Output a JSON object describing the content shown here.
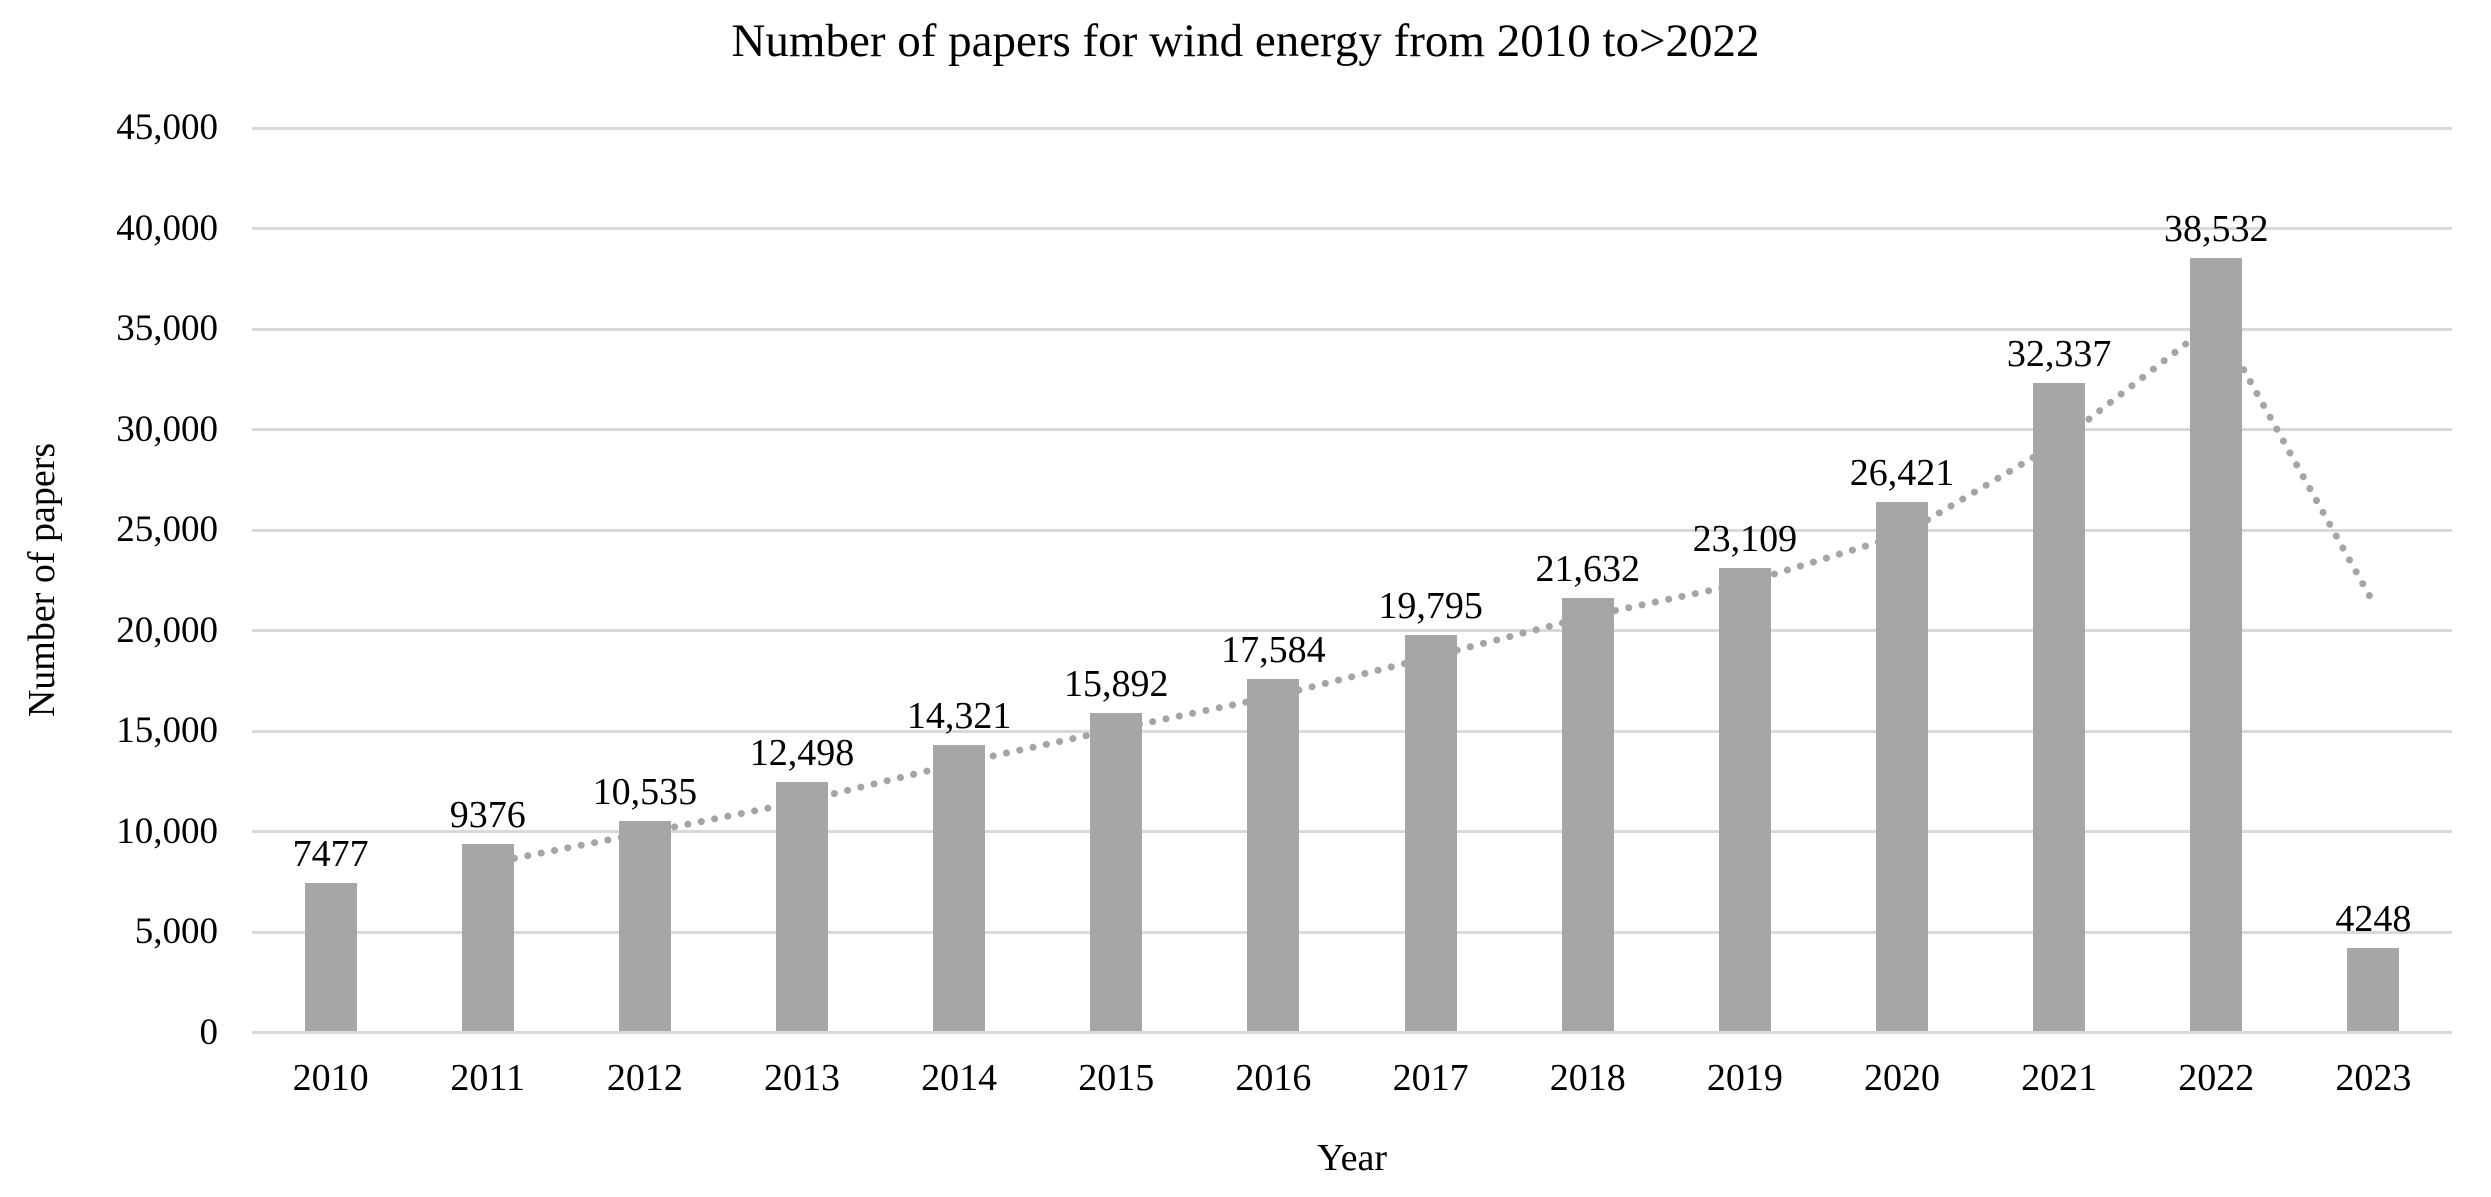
{
  "colors": {
    "bar": "#a6a6a6",
    "trendline": "#a5a5a5",
    "gridline": "#d9d9d9",
    "axis_line": "#d9d9d9",
    "text": "#000000",
    "background": "#ffffff"
  },
  "chart_data": {
    "type": "bar",
    "title": "Number of papers for wind energy from 2010 to>2022",
    "xlabel": "Year",
    "ylabel": "Number of papers",
    "categories": [
      "2010",
      "2011",
      "2012",
      "2013",
      "2014",
      "2015",
      "2016",
      "2017",
      "2018",
      "2019",
      "2020",
      "2021",
      "2022",
      "2023"
    ],
    "values": [
      7477,
      9376,
      10535,
      12498,
      14321,
      15892,
      17584,
      19795,
      21632,
      23109,
      26421,
      32337,
      38532,
      4248
    ],
    "data_labels": [
      "7477",
      "9376",
      "10,535",
      "12,498",
      "14,321",
      "15,892",
      "17,584",
      "19,795",
      "21,632",
      "23,109",
      "26,421",
      "32,337",
      "38,532",
      "4248"
    ],
    "ylim": [
      0,
      45000
    ],
    "ytick_step": 5000,
    "ytick_labels": [
      "0",
      "5,000",
      "10,000",
      "15,000",
      "20,000",
      "25,000",
      "30,000",
      "35,000",
      "40,000",
      "45,000"
    ],
    "grid": true,
    "legend": "none",
    "trendline": {
      "kind": "2-period moving average",
      "style": "dotted",
      "behind_bars": true,
      "x": [
        "2011",
        "2012",
        "2013",
        "2014",
        "2015",
        "2016",
        "2017",
        "2018",
        "2019",
        "2020",
        "2021",
        "2022",
        "2023"
      ],
      "values": [
        8427,
        9956,
        11517,
        13410,
        15107,
        16738,
        18690,
        20714,
        22371,
        24765,
        29379,
        35435,
        21390
      ]
    }
  }
}
